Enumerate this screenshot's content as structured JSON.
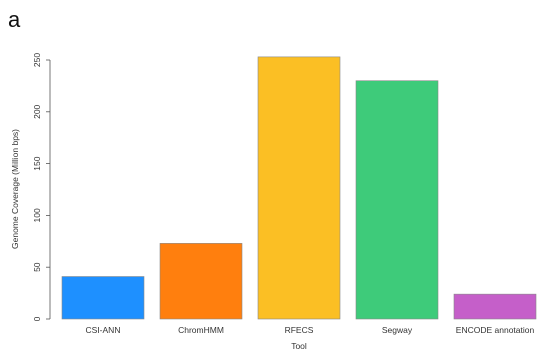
{
  "panel_label": "a",
  "chart_data": {
    "type": "bar",
    "title": "",
    "xlabel": "Tool",
    "ylabel": "Genome Coverage (Million bps)",
    "categories": [
      "CSI-ANN",
      "ChromHMM",
      "RFECS",
      "Segway",
      "ENCODE annotation"
    ],
    "values": [
      41,
      73,
      253,
      230,
      24
    ],
    "colors": [
      "#1e90ff",
      "#ff7f0e",
      "#fbbf24",
      "#3ecb7a",
      "#c55fc9"
    ],
    "ylim": [
      0,
      250
    ],
    "yticks": [
      0,
      50,
      100,
      150,
      200,
      250
    ],
    "grid": false,
    "legend": "none"
  }
}
